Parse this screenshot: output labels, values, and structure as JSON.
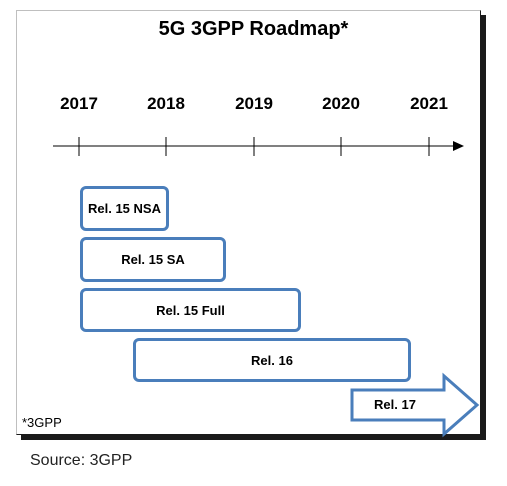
{
  "title": "5G 3GPP Roadmap*",
  "years": [
    "2017",
    "2018",
    "2019",
    "2020",
    "2021"
  ],
  "releases": [
    {
      "label": "Rel. 15 NSA"
    },
    {
      "label": "Rel. 15 SA"
    },
    {
      "label": "Rel. 15 Full"
    },
    {
      "label": "Rel. 16"
    },
    {
      "label": "Rel. 17"
    }
  ],
  "footnote": "*3GPP",
  "source": "Source: 3GPP",
  "colors": {
    "bar_border": "#4a7ebb",
    "arrow": "#4a7ebb"
  }
}
